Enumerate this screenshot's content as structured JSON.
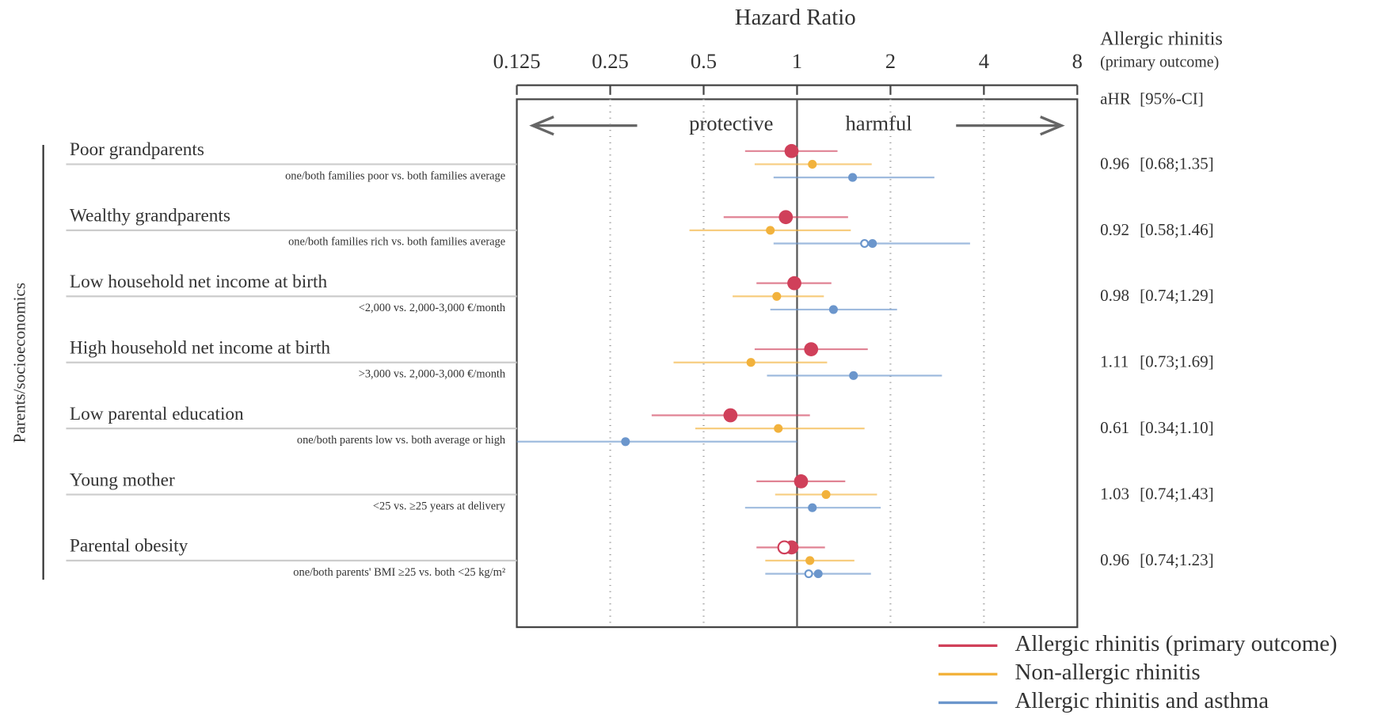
{
  "chart_data": {
    "type": "forest",
    "title": "Hazard Ratio",
    "xscale": "log",
    "xlim": [
      0.125,
      8
    ],
    "xticks": [
      0.125,
      0.25,
      0.5,
      1,
      2,
      4,
      8
    ],
    "grid": true,
    "reference": 1,
    "arrow_labels": [
      "protective",
      "harmful"
    ],
    "group_label": "Parents/socioeconomics",
    "table_header": [
      "Allergic rhinitis",
      "(primary outcome)"
    ],
    "table_columns": [
      "aHR",
      "[95%-CI]"
    ],
    "legend": "bottom-right",
    "categories": [
      "Poor grandparents",
      "Wealthy grandparents",
      "Low household net income at birth",
      "High household net income at birth",
      "Low parental education",
      "Young mother",
      "Parental obesity"
    ],
    "sublabels": [
      "one/both families poor vs. both families average",
      "one/both families rich vs. both families average",
      "<2,000 vs. 2,000-3,000 €/month",
      ">3,000 vs. 2,000-3,000 €/month",
      "one/both parents low vs. both average or high",
      "<25 vs. ≥25 years at delivery",
      "one/both parents' BMI ≥25 vs. both <25 kg/m²"
    ],
    "series": [
      {
        "name": "Allergic rhinitis (primary outcome)",
        "color": "#d0405a",
        "values": [
          0.96,
          0.92,
          0.98,
          1.11,
          0.61,
          1.03,
          0.96
        ],
        "lower": [
          0.68,
          0.58,
          0.74,
          0.73,
          0.34,
          0.74,
          0.74
        ],
        "upper": [
          1.35,
          1.46,
          1.29,
          1.69,
          1.1,
          1.43,
          1.23
        ],
        "hollow": [
          null,
          null,
          null,
          null,
          null,
          null,
          0.91
        ],
        "value_labels": [
          "0.96",
          "0.92",
          "0.98",
          "1.11",
          "0.61",
          "1.03",
          "0.96"
        ],
        "ci_labels": [
          "[0.68;1.35]",
          "[0.58;1.46]",
          "[0.74;1.29]",
          "[0.73;1.69]",
          "[0.34;1.10]",
          "[0.74;1.43]",
          "[0.74;1.23]"
        ]
      },
      {
        "name": "Non-allergic rhinitis",
        "color": "#f2b23c",
        "values": [
          1.12,
          0.82,
          0.86,
          0.71,
          0.87,
          1.24,
          1.1
        ],
        "lower": [
          0.73,
          0.45,
          0.62,
          0.4,
          0.47,
          0.85,
          0.79
        ],
        "upper": [
          1.74,
          1.49,
          1.22,
          1.25,
          1.65,
          1.81,
          1.53
        ]
      },
      {
        "name": "Allergic rhinitis and asthma",
        "color": "#6b96cc",
        "values": [
          1.51,
          1.75,
          1.31,
          1.52,
          0.28,
          1.12,
          1.17
        ],
        "lower": [
          0.84,
          0.84,
          0.82,
          0.8,
          0.125,
          0.68,
          0.79
        ],
        "upper": [
          2.77,
          3.61,
          2.1,
          2.93,
          1.0,
          1.86,
          1.73
        ],
        "hollow": [
          null,
          1.65,
          null,
          null,
          null,
          null,
          1.09
        ]
      }
    ]
  }
}
